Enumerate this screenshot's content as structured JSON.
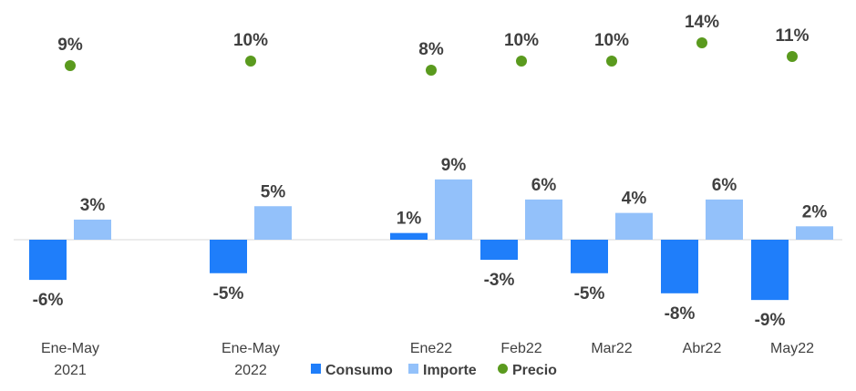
{
  "chart_data": {
    "type": "bar",
    "categories": [
      [
        "Ene-May",
        "2021"
      ],
      [
        "Ene-May",
        "2022"
      ],
      [
        "Ene22"
      ],
      [
        "Feb22"
      ],
      [
        "Mar22"
      ],
      [
        "Abr22"
      ],
      [
        "May22"
      ]
    ],
    "series": [
      {
        "name": "Consumo",
        "kind": "bar",
        "color": "#1F7EFA",
        "values": [
          -6,
          -5,
          1,
          -3,
          -5,
          -8,
          -9
        ]
      },
      {
        "name": "Importe",
        "kind": "bar",
        "color": "#93C1FA",
        "values": [
          3,
          5,
          9,
          6,
          4,
          6,
          2
        ]
      },
      {
        "name": "Precio",
        "kind": "point",
        "color": "#5A9A1E",
        "values": [
          9,
          10,
          8,
          10,
          10,
          14,
          11
        ]
      }
    ],
    "value_suffix": "%",
    "title": "",
    "xlabel": "",
    "ylabel": "",
    "legend_position": "bottom",
    "grid": false
  }
}
